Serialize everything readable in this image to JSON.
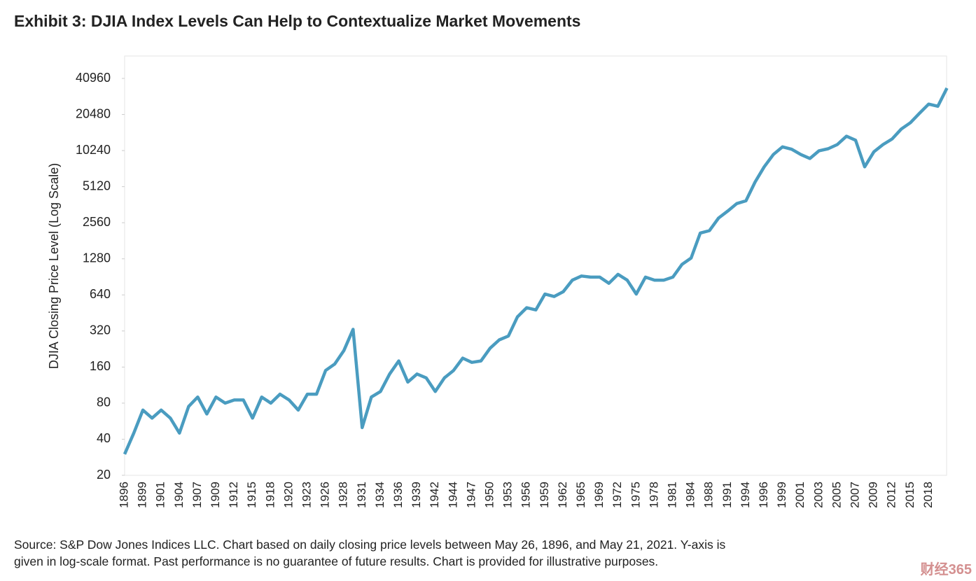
{
  "chart_data": {
    "type": "line",
    "title": "Exhibit 3: DJIA Index Levels Can Help to Contextualize Market Movements",
    "y_label": "DJIA Closing Price Level (Log Scale)",
    "note": [
      "Source: S&P Dow Jones Indices LLC. Chart based on daily closing price levels between May 26, 1896, and May 21, 2021. Y-axis is",
      "given in log-scale format. Past performance is no guarantee of future results. Chart is provided for illustrative purposes."
    ],
    "watermark": "财经365",
    "log_scale": true,
    "ylim": [
      20,
      63000
    ],
    "yticks": [
      20,
      40,
      80,
      160,
      320,
      640,
      1280,
      2560,
      5120,
      10240,
      20480,
      40960
    ],
    "categories": [
      "1896",
      null,
      "1899",
      null,
      "1901",
      null,
      "1904",
      null,
      "1907",
      null,
      "1909",
      null,
      "1912",
      null,
      "1915",
      null,
      "1918",
      null,
      "1920",
      null,
      "1923",
      null,
      "1926",
      null,
      "1928",
      null,
      "1931",
      null,
      "1934",
      null,
      "1936",
      null,
      "1939",
      null,
      "1942",
      null,
      "1944",
      null,
      "1947",
      null,
      "1950",
      null,
      "1953",
      null,
      "1956",
      null,
      "1959",
      null,
      "1962",
      null,
      "1965",
      null,
      "1969",
      null,
      "1972",
      null,
      "1975",
      null,
      "1978",
      null,
      "1981",
      null,
      "1984",
      null,
      "1988",
      null,
      "1991",
      null,
      "1994",
      null,
      "1996",
      null,
      "1999",
      null,
      "2001",
      null,
      "2003",
      null,
      "2005",
      null,
      "2007",
      null,
      "2009",
      null,
      "2012",
      null,
      "2015",
      null,
      "2018",
      null,
      null
    ],
    "series": [
      {
        "name": "DJIA",
        "color": "#4a9cc0",
        "values": [
          30,
          45,
          70,
          60,
          70,
          60,
          45,
          75,
          90,
          65,
          90,
          80,
          85,
          85,
          60,
          90,
          80,
          95,
          85,
          70,
          95,
          95,
          150,
          170,
          220,
          330,
          50,
          90,
          100,
          140,
          180,
          120,
          140,
          130,
          100,
          130,
          150,
          190,
          175,
          180,
          230,
          270,
          290,
          420,
          500,
          480,
          650,
          620,
          680,
          850,
          920,
          900,
          900,
          800,
          950,
          850,
          650,
          900,
          850,
          850,
          900,
          1150,
          1300,
          2100,
          2200,
          2800,
          3200,
          3700,
          3900,
          5600,
          7500,
          9500,
          11000,
          10500,
          9500,
          8800,
          10200,
          10600,
          11500,
          13500,
          12500,
          7500,
          10000,
          11500,
          12800,
          15500,
          17500,
          21000,
          25000,
          24000,
          34000
        ]
      }
    ]
  }
}
